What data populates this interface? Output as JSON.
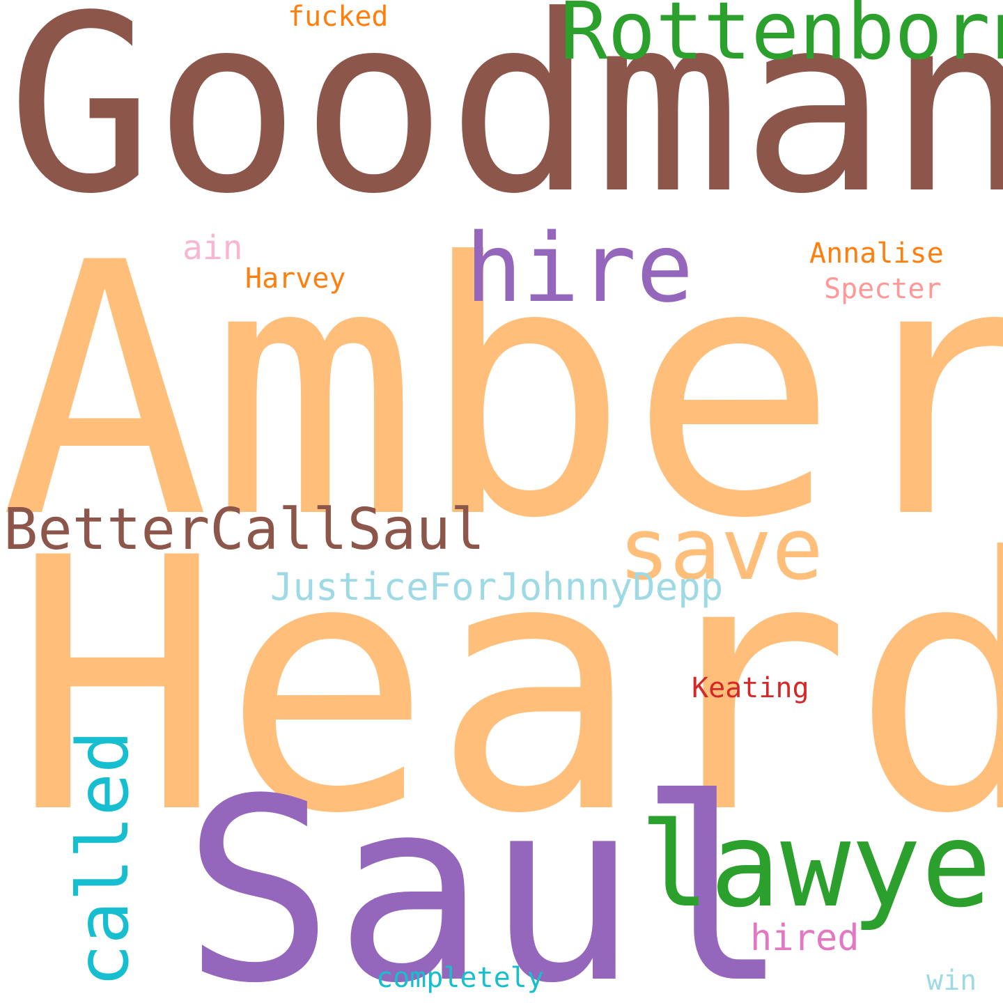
{
  "words": [
    {
      "text": "Goodman",
      "color": "#8c564b"
    },
    {
      "text": "Amber",
      "color": "#ffbe7a"
    },
    {
      "text": "Heard",
      "color": "#ffbe7a"
    },
    {
      "text": "Saul",
      "color": "#9467bd"
    },
    {
      "text": "Rottenborn",
      "color": "#2ca02c"
    },
    {
      "text": "lawyer",
      "color": "#2ca02c"
    },
    {
      "text": "hire",
      "color": "#9467bd"
    },
    {
      "text": "save",
      "color": "#ffbe7a"
    },
    {
      "text": "BetterCallSaul",
      "color": "#8c564b"
    },
    {
      "text": "called",
      "color": "#17becf"
    },
    {
      "text": "JusticeForJohnnyDepp",
      "color": "#9edae5"
    },
    {
      "text": "fucked",
      "color": "#ff7f0e"
    },
    {
      "text": "ain",
      "color": "#f7b6d2"
    },
    {
      "text": "Harvey",
      "color": "#ff7f0e"
    },
    {
      "text": "Annalise",
      "color": "#ff7f0e"
    },
    {
      "text": "Specter",
      "color": "#ff9896"
    },
    {
      "text": "Keating",
      "color": "#d62728"
    },
    {
      "text": "hired",
      "color": "#e377c2"
    },
    {
      "text": "completely",
      "color": "#17becf"
    },
    {
      "text": "win",
      "color": "#9edae5"
    }
  ]
}
